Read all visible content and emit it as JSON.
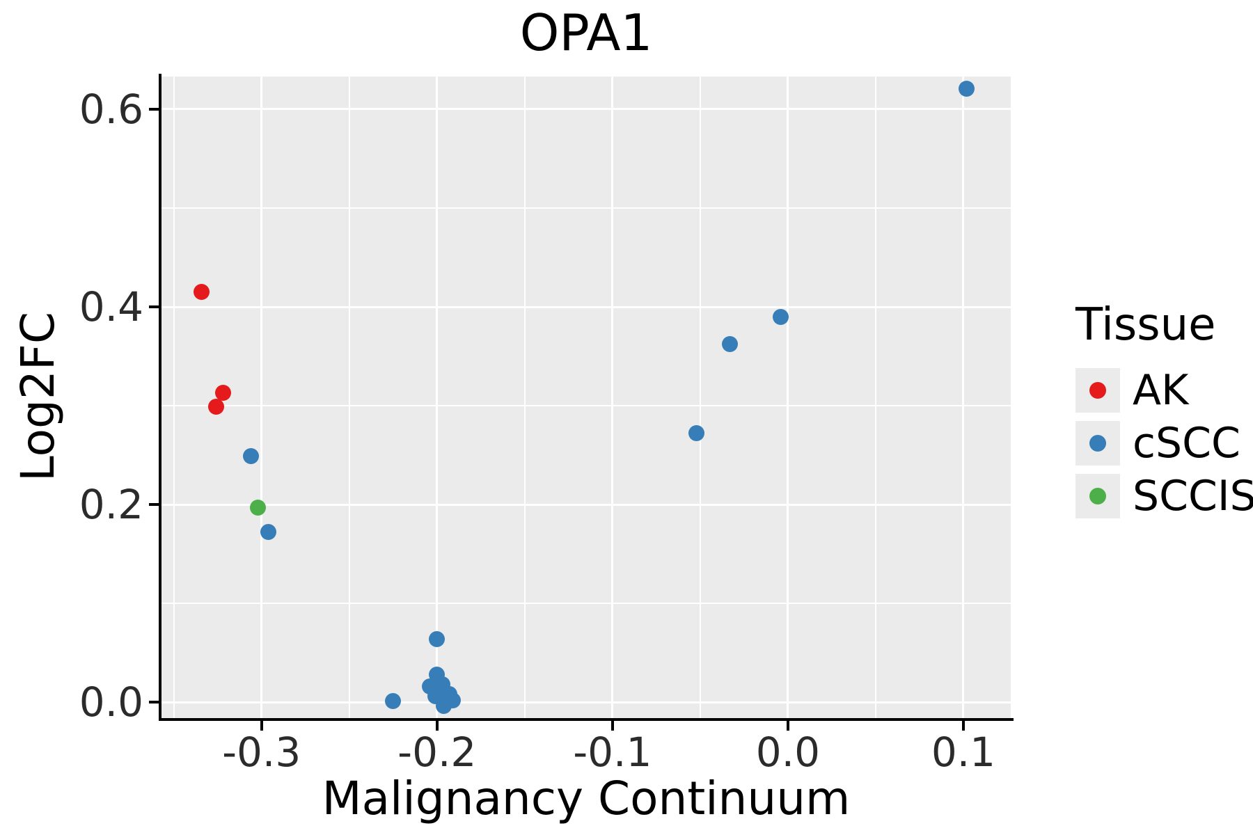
{
  "title": "OPA1",
  "axes": {
    "x": {
      "label": "Malignancy Continuum",
      "ticks": [
        -0.3,
        -0.2,
        -0.1,
        0.0,
        0.1
      ],
      "tick_labels": [
        "-0.3",
        "-0.2",
        "-0.1",
        "0.0",
        "0.1"
      ],
      "minor_ticks": [
        -0.35,
        -0.25,
        -0.15,
        -0.05,
        0.05
      ]
    },
    "y": {
      "label": "Log2FC",
      "ticks": [
        0.0,
        0.2,
        0.4,
        0.6
      ],
      "tick_labels": [
        "0.0",
        "0.2",
        "0.4",
        "0.6"
      ],
      "minor_ticks": [
        0.1,
        0.3,
        0.5
      ]
    }
  },
  "legend": {
    "title": "Tissue",
    "items": [
      {
        "label": "AK",
        "color": "#E41A1C"
      },
      {
        "label": "cSCC",
        "color": "#377EB8"
      },
      {
        "label": "SCCIS",
        "color": "#4DAF4A"
      }
    ]
  },
  "panel": {
    "background": "#EBEBEB",
    "gridline_color": "#FFFFFF",
    "axis_color": "#000000"
  },
  "chart_data": {
    "type": "scatter",
    "title": "OPA1",
    "xlabel": "Malignancy Continuum",
    "ylabel": "Log2FC",
    "xlim": [
      -0.357,
      0.127
    ],
    "ylim": [
      -0.016,
      0.633
    ],
    "grid": true,
    "legend_title": "Tissue",
    "legend_position": "right",
    "series": [
      {
        "name": "AK",
        "color": "#E41A1C",
        "points": [
          [
            -0.334,
            0.415
          ],
          [
            -0.322,
            0.313
          ],
          [
            -0.326,
            0.299
          ]
        ]
      },
      {
        "name": "cSCC",
        "color": "#377EB8",
        "points": [
          [
            -0.306,
            0.249
          ],
          [
            -0.296,
            0.172
          ],
          [
            -0.225,
            0.001
          ],
          [
            -0.2,
            0.064
          ],
          [
            -0.2,
            0.028
          ],
          [
            -0.204,
            0.016
          ],
          [
            -0.197,
            0.018
          ],
          [
            -0.201,
            0.006
          ],
          [
            -0.193,
            0.008
          ],
          [
            -0.196,
            -0.004
          ],
          [
            -0.191,
            0.002
          ],
          [
            -0.052,
            0.272
          ],
          [
            -0.033,
            0.362
          ],
          [
            -0.004,
            0.39
          ],
          [
            0.102,
            0.621
          ]
        ]
      },
      {
        "name": "SCCIS",
        "color": "#4DAF4A",
        "points": [
          [
            -0.302,
            0.197
          ]
        ]
      }
    ]
  }
}
